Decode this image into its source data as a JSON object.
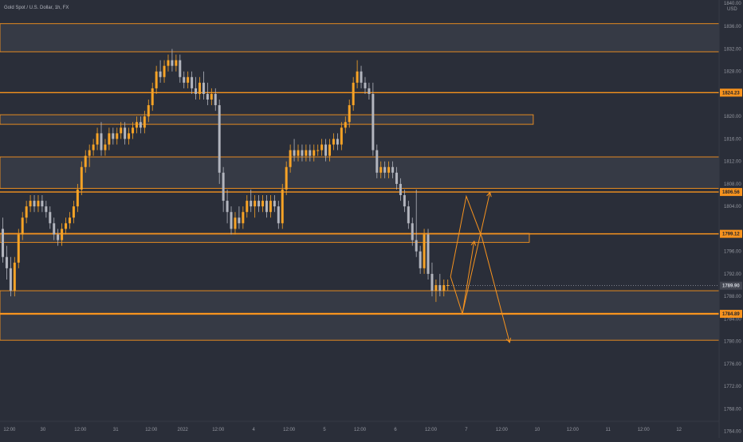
{
  "symbol_title": "Gold Spot / U.S. Dollar, 1h, FX",
  "currency": "USD",
  "axis_header": "1840.00",
  "colors": {
    "background": "#2a2e39",
    "up": "#f7a326",
    "down": "#b2b5be",
    "level": "#f7931e",
    "zone_fill": "#363a45",
    "axis_text": "#9598a1",
    "label_bg": "#f7931e",
    "current_label_bg": "#434651"
  },
  "chart_data": {
    "type": "candlestick",
    "title": "Gold Spot / U.S. Dollar, 1h, FX",
    "ylim": [
      1761,
      1840
    ],
    "y_ticks": [
      1836,
      1832,
      1828,
      1820,
      1816,
      1812,
      1808,
      1804,
      1796,
      1792,
      1788,
      1784,
      1780,
      1776,
      1772,
      1768,
      1764
    ],
    "y_tick_labels": [
      "1836.00",
      "1832.00",
      "1828.00",
      "1820.00",
      "1816.00",
      "1812.00",
      "1808.00",
      "1804.00",
      "1796.00",
      "1792.00",
      "1788.00",
      "1784.00",
      "1780.00",
      "1776.00",
      "1772.00",
      "1768.00",
      "1764.00"
    ],
    "x_labels": [
      {
        "label": "12:00",
        "slot": 2
      },
      {
        "label": "30",
        "slot": 10.5
      },
      {
        "label": "12:00",
        "slot": 20
      },
      {
        "label": "31",
        "slot": 29
      },
      {
        "label": "12:00",
        "slot": 38
      },
      {
        "label": "2022",
        "slot": 46
      },
      {
        "label": "12:00",
        "slot": 55
      },
      {
        "label": "4",
        "slot": 64
      },
      {
        "label": "12:00",
        "slot": 73
      },
      {
        "label": "5",
        "slot": 82
      },
      {
        "label": "12:00",
        "slot": 91
      },
      {
        "label": "6",
        "slot": 100
      },
      {
        "label": "12:00",
        "slot": 109
      },
      {
        "label": "7",
        "slot": 118
      },
      {
        "label": "12:00",
        "slot": 127
      },
      {
        "label": "10",
        "slot": 136
      },
      {
        "label": "12:00",
        "slot": 145
      },
      {
        "label": "11",
        "slot": 154
      },
      {
        "label": "12:00",
        "slot": 163
      },
      {
        "label": "12",
        "slot": 172
      }
    ],
    "price_labels": [
      {
        "price": 1824.23,
        "label": "1824.23",
        "kind": "level"
      },
      {
        "price": 1806.56,
        "label": "1806.56",
        "kind": "level"
      },
      {
        "price": 1799.12,
        "label": "1799.12",
        "kind": "level"
      },
      {
        "price": 1789.9,
        "label": "1789.90",
        "kind": "current"
      },
      {
        "price": 1784.89,
        "label": "1784.89",
        "kind": "level"
      }
    ],
    "zones": [
      {
        "top": 1836.5,
        "bottom": 1831.5,
        "right_slot": null
      },
      {
        "top": 1820.3,
        "bottom": 1818.6,
        "right_slot": 135
      },
      {
        "top": 1812.8,
        "bottom": 1807.2,
        "right_slot": null
      },
      {
        "top": 1799.2,
        "bottom": 1797.6,
        "right_slot": 134
      },
      {
        "top": 1789.0,
        "bottom": 1785.0,
        "right_slot": null
      },
      {
        "top": 1784.8,
        "bottom": 1780.2,
        "right_slot": null
      }
    ],
    "levels": [
      1824.23,
      1806.56,
      1799.12,
      1784.89
    ],
    "projections": [
      {
        "points": [
          [
            114,
            1791.5
          ],
          [
            117,
            1784.9
          ],
          [
            124,
            1806.5
          ]
        ]
      },
      {
        "points": [
          [
            114,
            1791.5
          ],
          [
            118,
            1805.8
          ],
          [
            122,
            1798.4
          ],
          [
            129,
            1779.8
          ]
        ]
      },
      {
        "points": [
          [
            117,
            1784.9
          ],
          [
            120,
            1797.8
          ]
        ]
      }
    ],
    "candles": [
      [
        1800,
        1802,
        1794,
        1795
      ],
      [
        1795,
        1797,
        1791,
        1793
      ],
      [
        1793,
        1795,
        1788,
        1789
      ],
      [
        1789,
        1795,
        1788,
        1794
      ],
      [
        1794,
        1800,
        1793,
        1799
      ],
      [
        1799,
        1803,
        1798,
        1802
      ],
      [
        1802,
        1805,
        1801,
        1804
      ],
      [
        1804,
        1806,
        1803,
        1805
      ],
      [
        1805,
        1806,
        1803,
        1804
      ],
      [
        1804,
        1806,
        1803,
        1805
      ],
      [
        1805,
        1806,
        1803,
        1804
      ],
      [
        1804,
        1805,
        1802,
        1803
      ],
      [
        1803,
        1804,
        1800,
        1801
      ],
      [
        1801,
        1802,
        1798,
        1799
      ],
      [
        1799,
        1800,
        1797,
        1798
      ],
      [
        1798,
        1801,
        1797,
        1800
      ],
      [
        1800,
        1802,
        1799,
        1801
      ],
      [
        1801,
        1803,
        1800,
        1802
      ],
      [
        1802,
        1805,
        1801,
        1804
      ],
      [
        1804,
        1808,
        1803,
        1807
      ],
      [
        1807,
        1812,
        1806,
        1811
      ],
      [
        1811,
        1814,
        1810,
        1813
      ],
      [
        1813,
        1815,
        1811,
        1814
      ],
      [
        1814,
        1816,
        1813,
        1815
      ],
      [
        1815,
        1818,
        1814,
        1817
      ],
      [
        1817,
        1819,
        1813,
        1814
      ],
      [
        1814,
        1816,
        1813,
        1815
      ],
      [
        1815,
        1818,
        1814,
        1817
      ],
      [
        1817,
        1818,
        1815,
        1816
      ],
      [
        1816,
        1818,
        1815,
        1817
      ],
      [
        1817,
        1819,
        1816,
        1818
      ],
      [
        1818,
        1819,
        1815,
        1816
      ],
      [
        1816,
        1818,
        1815,
        1817
      ],
      [
        1817,
        1819,
        1816,
        1818
      ],
      [
        1818,
        1820,
        1817,
        1819
      ],
      [
        1819,
        1820,
        1817,
        1818
      ],
      [
        1818,
        1821,
        1817,
        1820
      ],
      [
        1820,
        1823,
        1819,
        1822
      ],
      [
        1822,
        1826,
        1821,
        1825
      ],
      [
        1825,
        1829,
        1824,
        1828
      ],
      [
        1828,
        1830,
        1826,
        1827
      ],
      [
        1827,
        1830,
        1826,
        1829
      ],
      [
        1829,
        1831,
        1828,
        1830
      ],
      [
        1830,
        1832,
        1828,
        1829
      ],
      [
        1829,
        1831,
        1828,
        1830
      ],
      [
        1830,
        1831,
        1826,
        1827
      ],
      [
        1827,
        1828,
        1825,
        1826
      ],
      [
        1826,
        1828,
        1825,
        1827
      ],
      [
        1827,
        1828,
        1824,
        1825
      ],
      [
        1825,
        1827,
        1823,
        1824
      ],
      [
        1824,
        1827,
        1823,
        1826
      ],
      [
        1826,
        1828,
        1823,
        1824
      ],
      [
        1824,
        1826,
        1822,
        1823
      ],
      [
        1823,
        1825,
        1822,
        1824
      ],
      [
        1824,
        1825,
        1821,
        1822
      ],
      [
        1822,
        1823,
        1808,
        1810
      ],
      [
        1810,
        1811,
        1803,
        1805
      ],
      [
        1805,
        1807,
        1801,
        1803
      ],
      [
        1803,
        1804,
        1799,
        1800
      ],
      [
        1800,
        1803,
        1799,
        1802
      ],
      [
        1802,
        1804,
        1800,
        1801
      ],
      [
        1801,
        1804,
        1800,
        1803
      ],
      [
        1803,
        1806,
        1802,
        1805
      ],
      [
        1805,
        1807,
        1803,
        1804
      ],
      [
        1804,
        1806,
        1802,
        1805
      ],
      [
        1805,
        1806,
        1803,
        1804
      ],
      [
        1804,
        1806,
        1803,
        1805
      ],
      [
        1805,
        1806,
        1802,
        1803
      ],
      [
        1803,
        1806,
        1802,
        1805
      ],
      [
        1805,
        1806,
        1803,
        1804
      ],
      [
        1804,
        1805,
        1800,
        1801
      ],
      [
        1801,
        1808,
        1800,
        1807
      ],
      [
        1807,
        1812,
        1806,
        1811
      ],
      [
        1811,
        1815,
        1810,
        1814
      ],
      [
        1814,
        1816,
        1812,
        1813
      ],
      [
        1813,
        1815,
        1812,
        1814
      ],
      [
        1814,
        1815,
        1812,
        1813
      ],
      [
        1813,
        1815,
        1812,
        1814
      ],
      [
        1814,
        1815,
        1812,
        1813
      ],
      [
        1813,
        1815,
        1812,
        1814
      ],
      [
        1814,
        1815,
        1813,
        1814
      ],
      [
        1814,
        1816,
        1813,
        1815
      ],
      [
        1815,
        1816,
        1812,
        1813
      ],
      [
        1813,
        1816,
        1812,
        1815
      ],
      [
        1815,
        1817,
        1814,
        1816
      ],
      [
        1816,
        1817,
        1814,
        1815
      ],
      [
        1815,
        1819,
        1814,
        1818
      ],
      [
        1818,
        1820,
        1817,
        1819
      ],
      [
        1819,
        1823,
        1818,
        1822
      ],
      [
        1822,
        1827,
        1821,
        1826
      ],
      [
        1826,
        1830,
        1825,
        1828
      ],
      [
        1828,
        1829,
        1825,
        1826
      ],
      [
        1826,
        1827,
        1824,
        1825
      ],
      [
        1825,
        1826,
        1823,
        1824
      ],
      [
        1824,
        1826,
        1813,
        1814
      ],
      [
        1814,
        1815,
        1809,
        1810
      ],
      [
        1810,
        1812,
        1809,
        1811
      ],
      [
        1811,
        1812,
        1809,
        1810
      ],
      [
        1810,
        1812,
        1809,
        1811
      ],
      [
        1811,
        1812,
        1809,
        1810
      ],
      [
        1810,
        1811,
        1807,
        1808
      ],
      [
        1808,
        1809,
        1805,
        1806
      ],
      [
        1806,
        1807,
        1803,
        1804
      ],
      [
        1804,
        1805,
        1800,
        1801
      ],
      [
        1801,
        1802,
        1797,
        1798
      ],
      [
        1798,
        1807,
        1795,
        1796
      ],
      [
        1796,
        1797,
        1792,
        1793
      ],
      [
        1793,
        1800,
        1792,
        1799
      ],
      [
        1799,
        1800,
        1791,
        1792
      ],
      [
        1792,
        1794,
        1788,
        1789
      ],
      [
        1789,
        1791,
        1787,
        1790
      ],
      [
        1790,
        1792,
        1788,
        1789
      ],
      [
        1789,
        1791,
        1788,
        1790
      ],
      [
        1790,
        1791,
        1789,
        1790
      ]
    ]
  }
}
